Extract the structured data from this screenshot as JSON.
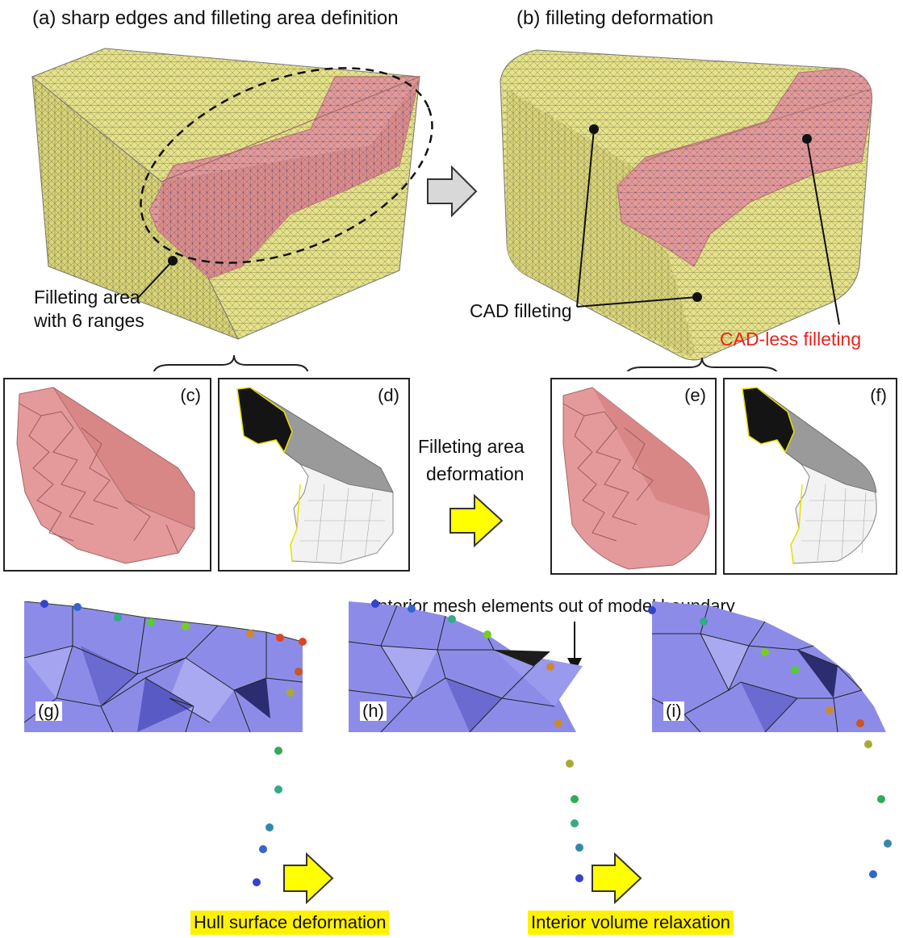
{
  "titles": {
    "a": "(a) sharp edges and filleting area definition",
    "b": "(b) filleting deformation"
  },
  "annotations": {
    "filleting_area_line1": "Filleting area",
    "filleting_area_line2": "with 6 ranges",
    "cad_filleting": "CAD filleting",
    "cad_less_filleting": "CAD-less filleting",
    "filleting_area_deformation_line1": "Filleting area",
    "filleting_area_deformation_line2": "deformation",
    "interior_out_of_boundary": "Interior mesh elements out of model boundary",
    "hull_surface_deformation": "Hull surface deformation",
    "interior_volume_relaxation": "Interior volume relaxation"
  },
  "panel_labels": {
    "c": "(c)",
    "d": "(d)",
    "e": "(e)",
    "f": "(f)",
    "g": "(g)",
    "h": "(h)",
    "i": "(i)"
  },
  "colors": {
    "mesh_yellow": "#e8e48a",
    "fillet_pink": "#e49a9a",
    "tet_purple": "#8c8ce8",
    "highlight": "#fff200",
    "arrow_yellow": "#ffff00",
    "arrow_grey": "#d8d8d8",
    "cad_less_red": "#e8231d"
  }
}
